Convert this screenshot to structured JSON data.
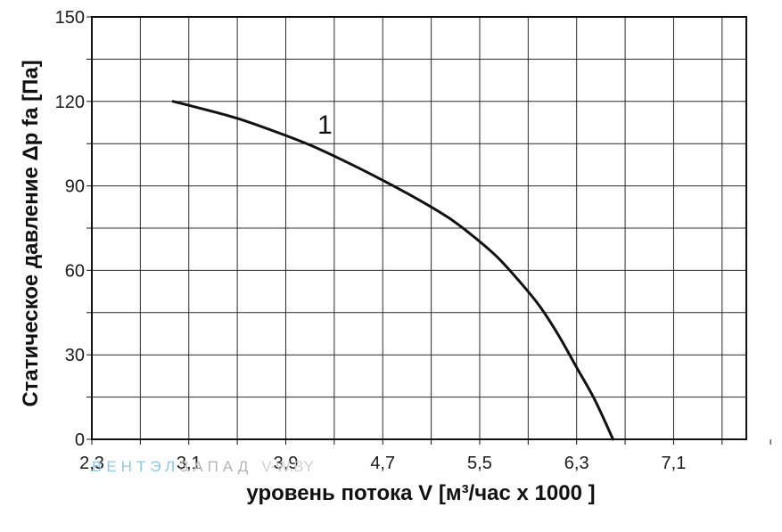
{
  "chart_data": {
    "type": "line",
    "xlabel": "уровень потока  V [м³/час x 1000 ]",
    "ylabel": "Статическое давление  Δp fa [Па]",
    "xlim": [
      2.3,
      7.7
    ],
    "ylim": [
      0,
      150
    ],
    "x_ticks": [
      "2,3",
      "3,1",
      "3,9",
      "4,7",
      "5,5",
      "6,3",
      "7,1"
    ],
    "x_tick_values": [
      2.3,
      3.1,
      3.9,
      4.7,
      5.5,
      6.3,
      7.1
    ],
    "x_minor_step": 0.4,
    "y_ticks": [
      "0",
      "30",
      "60",
      "90",
      "120",
      "150"
    ],
    "y_tick_values": [
      0,
      30,
      60,
      90,
      120,
      150
    ],
    "y_minor_step": 15,
    "grid": true,
    "series": [
      {
        "name": "1",
        "color": "#111111",
        "x": [
          2.97,
          3.2,
          3.5,
          3.8,
          4.1,
          4.4,
          4.7,
          5.0,
          5.25,
          5.45,
          5.65,
          5.85,
          6.0,
          6.15,
          6.3,
          6.45,
          6.6
        ],
        "y": [
          120,
          117.5,
          114,
          109.5,
          104.5,
          98.5,
          92,
          85,
          78.5,
          72,
          64.5,
          55,
          47,
          37,
          25.5,
          14,
          0
        ]
      }
    ]
  },
  "watermark": {
    "part1": "ВЕНТЭЛ",
    "part2": "ЗАПАД",
    "part3": "V-W.BY",
    "color1": "#8ec8e8",
    "color2": "#b5b5b5",
    "color3": "#cfcfcf"
  }
}
